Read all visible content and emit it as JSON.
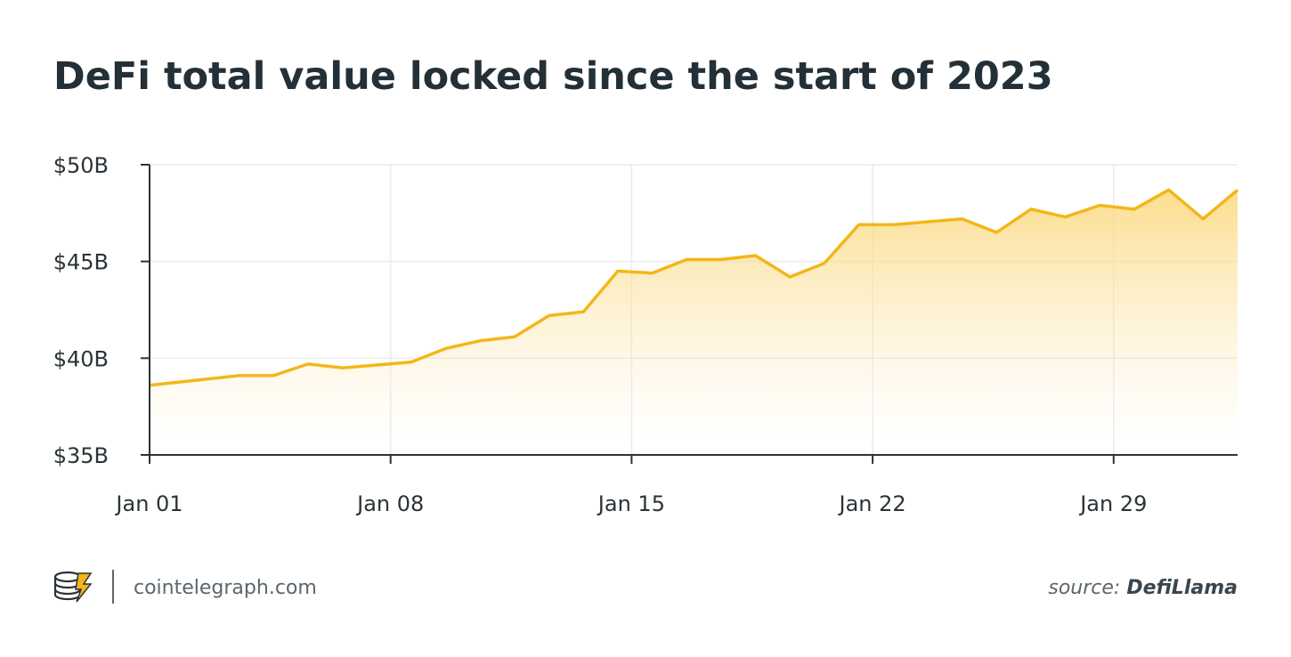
{
  "chart_data": {
    "type": "area",
    "title": "DeFi total value locked since the start of 2023",
    "x": [
      1,
      3.6,
      4.6,
      5.6,
      6.6,
      8.6,
      9.6,
      10.6,
      11.6,
      12.6,
      13.6,
      14.6,
      15.6,
      16.6,
      17.6,
      18.6,
      19.6,
      20.6,
      21.6,
      22.6,
      24.6,
      25.6,
      26.6,
      27.6,
      28.6,
      29.6,
      30.6,
      31.6,
      32.6
    ],
    "series": [
      {
        "color": "#f2b718",
        "values": [
          38.6,
          39.1,
          39.1,
          39.7,
          39.5,
          39.8,
          40.5,
          40.9,
          41.1,
          42.2,
          42.4,
          44.5,
          44.4,
          45.1,
          45.1,
          45.3,
          44.2,
          44.9,
          46.9,
          46.9,
          47.2,
          46.5,
          47.7,
          47.3,
          47.9,
          47.7,
          48.7,
          47.2,
          48.7
        ]
      }
    ],
    "xlim": [
      1,
      32.6
    ],
    "xticks": [
      {
        "value": 1,
        "label": "Jan 01"
      },
      {
        "value": 8,
        "label": "Jan 08"
      },
      {
        "value": 15,
        "label": "Jan 15"
      },
      {
        "value": 22,
        "label": "Jan 22"
      },
      {
        "value": 29,
        "label": "Jan 29"
      }
    ],
    "ylim": [
      35,
      50
    ],
    "yticks": [
      {
        "value": 35,
        "label": "$35B"
      },
      {
        "value": 40,
        "label": "$40B"
      },
      {
        "value": 45,
        "label": "$45B"
      },
      {
        "value": 50,
        "label": "$50B"
      }
    ],
    "grid": true
  },
  "footer": {
    "site": "cointelegraph.com",
    "source_label": "source:",
    "source": "DefiLlama"
  }
}
